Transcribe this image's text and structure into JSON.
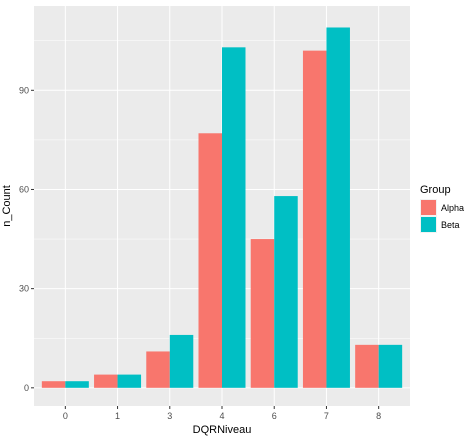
{
  "chart_data": {
    "type": "bar",
    "categories": [
      "0",
      "1",
      "3",
      "4",
      "6",
      "7",
      "8"
    ],
    "series": [
      {
        "name": "Alpha",
        "values": [
          2,
          4,
          11,
          77,
          45,
          102,
          13
        ],
        "color": "#F8766D"
      },
      {
        "name": "Beta",
        "values": [
          2,
          4,
          16,
          103,
          58,
          109,
          13
        ],
        "color": "#00BFC4"
      }
    ],
    "xlabel": "DQRNiveau",
    "ylabel": "n_Count",
    "yticks": [
      0,
      30,
      60,
      90
    ],
    "ylim": [
      -5.5,
      115.5
    ],
    "grid": true,
    "panel_background": "#EBEBEB",
    "grid_color": "#FFFFFF",
    "legend": {
      "title": "Group",
      "placement": "right"
    }
  }
}
